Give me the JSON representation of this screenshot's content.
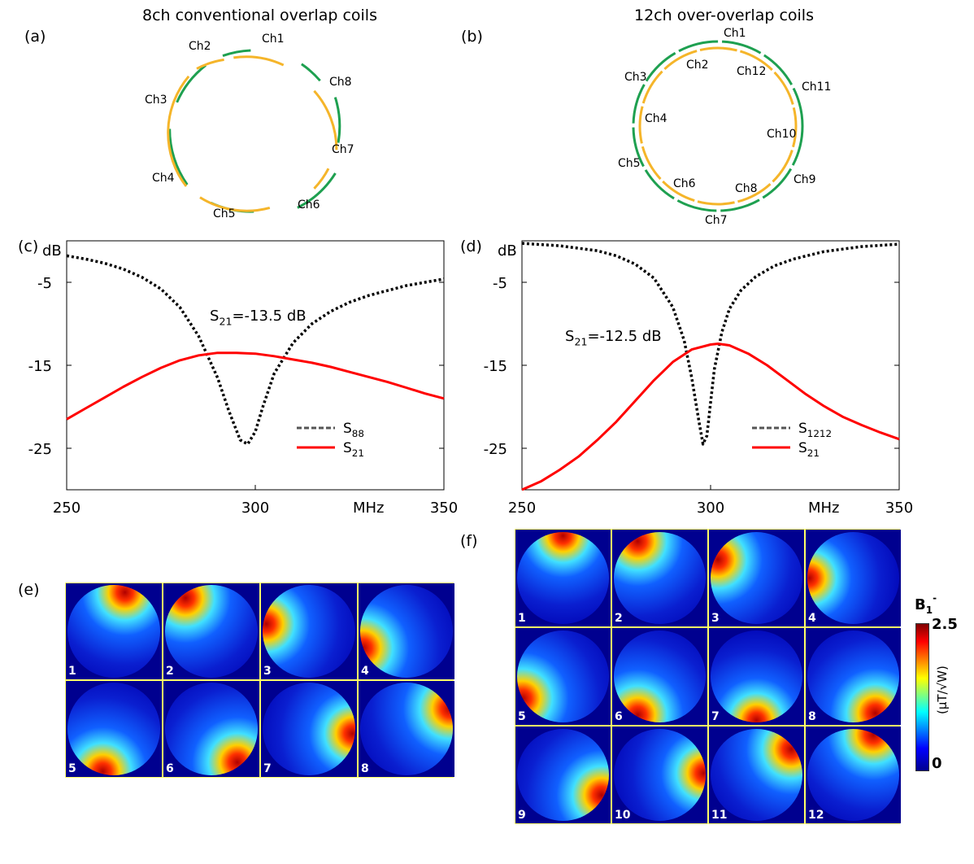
{
  "panels": {
    "a": {
      "tag": "(a)",
      "title": "8ch conventional overlap coils",
      "channels": [
        "Ch1",
        "Ch2",
        "Ch3",
        "Ch4",
        "Ch5",
        "Ch6",
        "Ch7",
        "Ch8"
      ]
    },
    "b": {
      "tag": "(b)",
      "title": "12ch over-overlap coils",
      "channels": [
        "Ch1",
        "Ch2",
        "Ch3",
        "Ch4",
        "Ch5",
        "Ch6",
        "Ch7",
        "Ch8",
        "Ch9",
        "Ch10",
        "Ch11",
        "Ch12"
      ]
    },
    "e": {
      "tag": "(e)",
      "tiles": [
        "1",
        "2",
        "3",
        "4",
        "5",
        "6",
        "7",
        "8"
      ]
    },
    "f": {
      "tag": "(f)",
      "tiles": [
        "1",
        "2",
        "3",
        "4",
        "5",
        "6",
        "7",
        "8",
        "9",
        "10",
        "11",
        "12"
      ]
    }
  },
  "chart_data": [
    {
      "id": "c",
      "type": "line",
      "tag": "(c)",
      "ylabel": "dB",
      "xlabel": "MHz",
      "xlim": [
        250,
        350
      ],
      "ylim": [
        -30,
        0
      ],
      "xticks": [
        "250",
        "300",
        "350"
      ],
      "yticks": [
        "-5",
        "-15",
        "-25"
      ],
      "annotation": {
        "main": "S",
        "sub": "21",
        "rest": "=-13.5 dB"
      },
      "legend": [
        {
          "main": "S",
          "sub": "88",
          "style": "dotted"
        },
        {
          "main": "S",
          "sub": "21",
          "style": "solid"
        }
      ],
      "series": [
        {
          "name": "S88",
          "color": "#000000",
          "style": "dotted",
          "x": [
            250,
            255,
            260,
            265,
            270,
            275,
            280,
            285,
            290,
            293,
            296,
            298,
            300,
            302,
            305,
            310,
            315,
            320,
            325,
            330,
            335,
            340,
            345,
            350
          ],
          "y": [
            -1.8,
            -2.2,
            -2.7,
            -3.4,
            -4.4,
            -5.8,
            -8.0,
            -11.5,
            -16.5,
            -20.5,
            -24.0,
            -24.5,
            -23.0,
            -20.0,
            -16.0,
            -12.3,
            -10.0,
            -8.5,
            -7.4,
            -6.6,
            -6.0,
            -5.4,
            -5.0,
            -4.6
          ]
        },
        {
          "name": "S21",
          "color": "#ff0000",
          "style": "solid",
          "x": [
            250,
            255,
            260,
            265,
            270,
            275,
            280,
            285,
            290,
            295,
            300,
            305,
            310,
            315,
            320,
            325,
            330,
            335,
            340,
            345,
            350
          ],
          "y": [
            -21.5,
            -20.2,
            -18.9,
            -17.6,
            -16.4,
            -15.3,
            -14.4,
            -13.8,
            -13.5,
            -13.5,
            -13.6,
            -13.9,
            -14.3,
            -14.7,
            -15.2,
            -15.8,
            -16.4,
            -17.0,
            -17.7,
            -18.4,
            -19.0
          ]
        }
      ]
    },
    {
      "id": "d",
      "type": "line",
      "tag": "(d)",
      "ylabel": "dB",
      "xlabel": "MHz",
      "xlim": [
        250,
        350
      ],
      "ylim": [
        -30,
        0
      ],
      "xticks": [
        "250",
        "300",
        "350"
      ],
      "yticks": [
        "-5",
        "-15",
        "-25"
      ],
      "annotation": {
        "main": "S",
        "sub": "21",
        "rest": "=-12.5 dB"
      },
      "legend": [
        {
          "main": "S",
          "sub": "1212",
          "style": "dotted"
        },
        {
          "main": "S",
          "sub": "21",
          "style": "solid"
        }
      ],
      "series": [
        {
          "name": "S1212",
          "color": "#000000",
          "style": "dotted",
          "x": [
            250,
            260,
            270,
            275,
            280,
            285,
            290,
            293,
            295,
            297,
            298,
            299,
            300,
            301,
            303,
            305,
            308,
            312,
            317,
            322,
            330,
            340,
            350
          ],
          "y": [
            -0.3,
            -0.6,
            -1.2,
            -1.8,
            -2.8,
            -4.5,
            -8.0,
            -12.0,
            -16.5,
            -22.0,
            -24.5,
            -23.5,
            -19.5,
            -15.5,
            -11.0,
            -8.2,
            -6.0,
            -4.3,
            -3.0,
            -2.2,
            -1.3,
            -0.7,
            -0.4
          ]
        },
        {
          "name": "S21",
          "color": "#ff0000",
          "style": "solid",
          "x": [
            250,
            255,
            260,
            265,
            270,
            275,
            280,
            285,
            290,
            295,
            300,
            302,
            305,
            310,
            315,
            320,
            325,
            330,
            335,
            340,
            345,
            350
          ],
          "y": [
            -30,
            -29.0,
            -27.6,
            -26.0,
            -24.0,
            -21.8,
            -19.3,
            -16.8,
            -14.6,
            -13.1,
            -12.5,
            -12.4,
            -12.6,
            -13.6,
            -15.0,
            -16.7,
            -18.4,
            -19.9,
            -21.2,
            -22.2,
            -23.1,
            -23.9
          ]
        }
      ]
    }
  ],
  "colorbar": {
    "symbol": "B",
    "sub": "1",
    "sup": "-",
    "max": "2.5",
    "min": "0",
    "unit": "(μT/√W)"
  }
}
